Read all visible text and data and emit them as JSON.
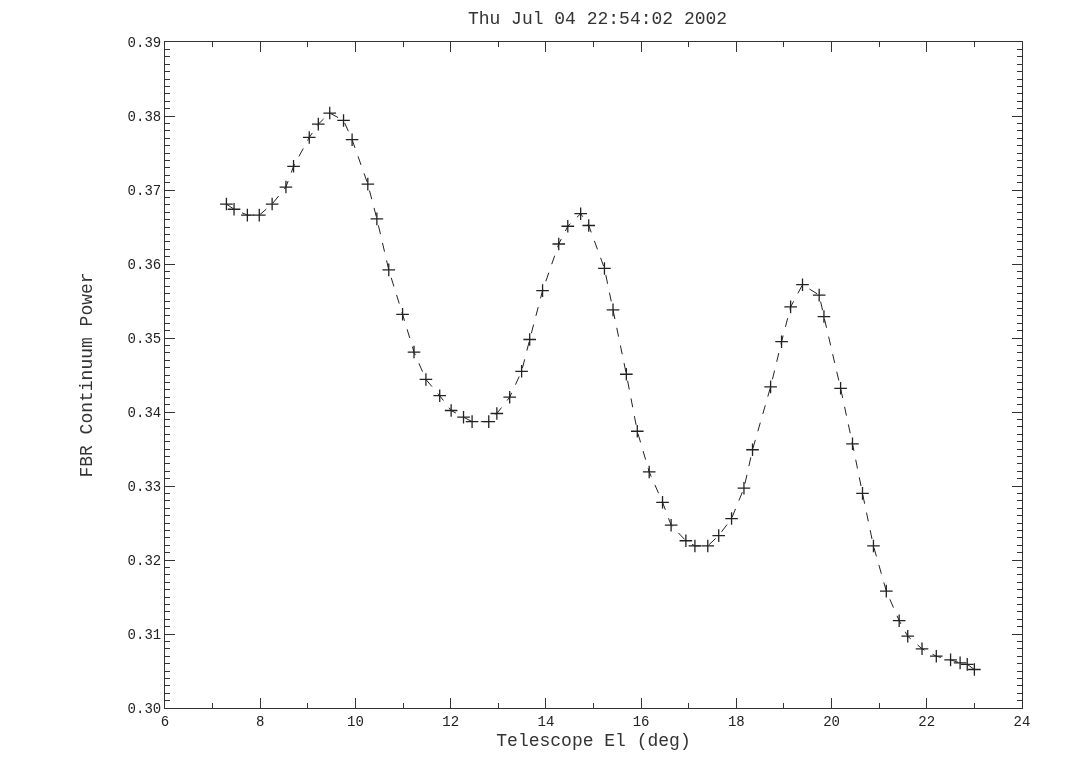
{
  "chart_data": {
    "type": "line",
    "title": "Thu Jul 04 22:54:02 2002",
    "xlabel": "Telescope El (deg)",
    "ylabel": "FBR Continuum Power",
    "x": [
      7.29,
      7.45,
      7.73,
      7.98,
      8.25,
      8.54,
      8.7,
      9.03,
      9.22,
      9.46,
      9.75,
      9.93,
      10.26,
      10.45,
      10.7,
      10.99,
      11.23,
      11.48,
      11.77,
      12.01,
      12.27,
      12.45,
      12.8,
      12.97,
      13.24,
      13.49,
      13.66,
      13.93,
      14.27,
      14.46,
      14.73,
      14.9,
      15.23,
      15.41,
      15.69,
      15.92,
      16.17,
      16.45,
      16.63,
      16.94,
      17.13,
      17.4,
      17.63,
      17.9,
      18.16,
      18.34,
      18.72,
      18.95,
      19.14,
      19.39,
      19.74,
      19.84,
      20.19,
      20.44,
      20.65,
      20.88,
      21.15,
      21.42,
      21.6,
      21.9,
      22.2,
      22.5,
      22.7,
      22.85,
      23.0
    ],
    "series": [
      {
        "color": "#222222",
        "values": [
          0.3681,
          0.3674,
          0.3666,
          0.3666,
          0.3681,
          0.3704,
          0.3732,
          0.3771,
          0.3789,
          0.3804,
          0.3794,
          0.3768,
          0.3708,
          0.3661,
          0.3592,
          0.3532,
          0.3481,
          0.3444,
          0.3422,
          0.3402,
          0.3393,
          0.3387,
          0.3387,
          0.3398,
          0.342,
          0.3455,
          0.3498,
          0.3564,
          0.3627,
          0.3651,
          0.3668,
          0.3652,
          0.3594,
          0.3538,
          0.3451,
          0.3374,
          0.3319,
          0.3278,
          0.3247,
          0.3226,
          0.3219,
          0.3219,
          0.3233,
          0.3256,
          0.3297,
          0.3349,
          0.3434,
          0.3495,
          0.3542,
          0.3572,
          0.3558,
          0.3529,
          0.3432,
          0.3357,
          0.329,
          0.3219,
          0.3158,
          0.3118,
          0.3097,
          0.308,
          0.307,
          0.3065,
          0.3061,
          0.3059,
          0.3052
        ]
      }
    ],
    "xlim": [
      6,
      24
    ],
    "xticks": [
      6,
      8,
      10,
      12,
      14,
      16,
      18,
      20,
      22,
      24
    ],
    "ylim": [
      0.3,
      0.39
    ],
    "yticks": [
      {
        "value": 0.3,
        "label": "0.30"
      },
      {
        "value": 0.31,
        "label": "0.31"
      },
      {
        "value": 0.32,
        "label": "0.32"
      },
      {
        "value": 0.33,
        "label": "0.33"
      },
      {
        "value": 0.34,
        "label": "0.34"
      },
      {
        "value": 0.35,
        "label": "0.35"
      },
      {
        "value": 0.36,
        "label": "0.36"
      },
      {
        "value": 0.37,
        "label": "0.37"
      },
      {
        "value": 0.38,
        "label": "0.38"
      },
      {
        "value": 0.39,
        "label": "0.39"
      }
    ],
    "marker": "cross",
    "line_style": "dashed"
  }
}
